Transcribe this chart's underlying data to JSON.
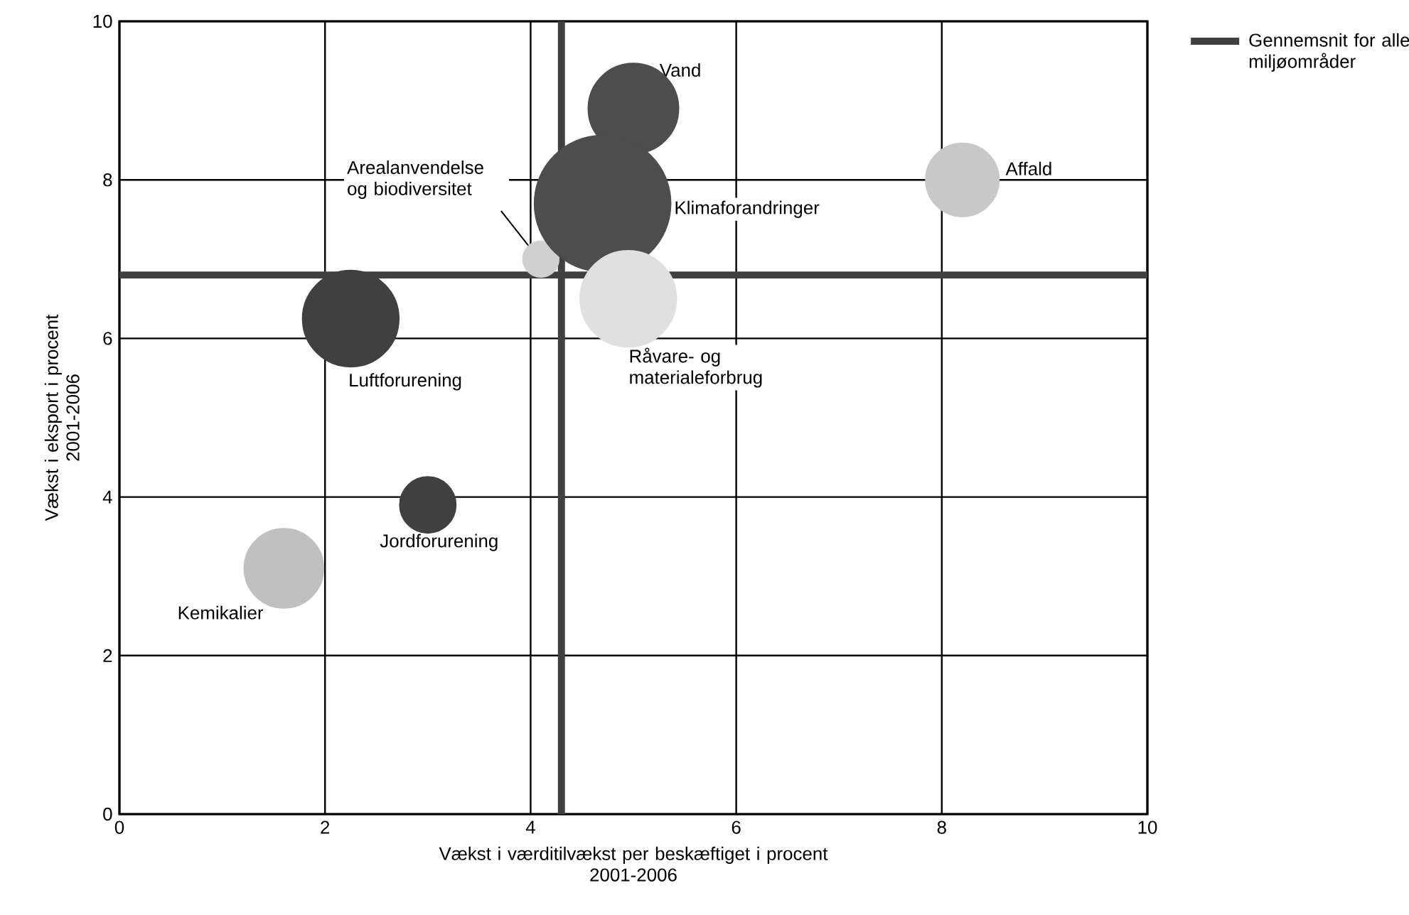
{
  "chart_data": {
    "type": "bubble",
    "xlabel": "Vækst i værditilvækst per beskæftiget i procent\n2001-2006",
    "ylabel": "Vækst i eksport i procent\n2001-2006",
    "xlim": [
      0,
      10
    ],
    "ylim": [
      0,
      10
    ],
    "xticks": [
      0,
      2,
      4,
      6,
      8,
      10
    ],
    "yticks": [
      0,
      2,
      4,
      6,
      8,
      10
    ],
    "grid": true,
    "legend": "top right",
    "series": [
      {
        "name": "Vand",
        "color": "#4d4d4d",
        "x": [
          5.0
        ],
        "values": [
          8.9
        ],
        "sizes": [
          0.44
        ]
      },
      {
        "name": "Affald",
        "color": "#c8c8c8",
        "x": [
          8.2
        ],
        "values": [
          8.0
        ],
        "sizes": [
          0.29
        ]
      },
      {
        "name": "Arealanvendelse og biodiversitet",
        "color": "#d0d0d0",
        "x": [
          4.1
        ],
        "values": [
          7.0
        ],
        "sizes": [
          0.07
        ]
      },
      {
        "name": "Klimaforandringer",
        "color": "#4d4d4d",
        "x": [
          4.7
        ],
        "values": [
          7.7
        ],
        "sizes": [
          1
        ]
      },
      {
        "name": "Luftforurening",
        "color": "#404040",
        "x": [
          2.25
        ],
        "values": [
          6.25
        ],
        "sizes": [
          0.5
        ]
      },
      {
        "name": "Råvare- og materialeforbrug",
        "color": "#e0e0e0",
        "x": [
          4.95
        ],
        "values": [
          6.5
        ],
        "sizes": [
          0.5
        ]
      },
      {
        "name": "Jordforurening",
        "color": "#404040",
        "x": [
          3.0
        ],
        "values": [
          3.9
        ],
        "sizes": [
          0.17
        ]
      },
      {
        "name": "Kemikalier",
        "color": "#c0c0c0",
        "x": [
          1.6
        ],
        "values": [
          3.1
        ],
        "sizes": [
          0.34
        ]
      }
    ],
    "ref_lines": [
      {
        "axis": "y",
        "value": 6.8,
        "label": "Gennemsnit for alle miljøområder",
        "color": "#404040"
      },
      {
        "axis": "x",
        "value": 4.3,
        "color": "#404040"
      }
    ]
  }
}
